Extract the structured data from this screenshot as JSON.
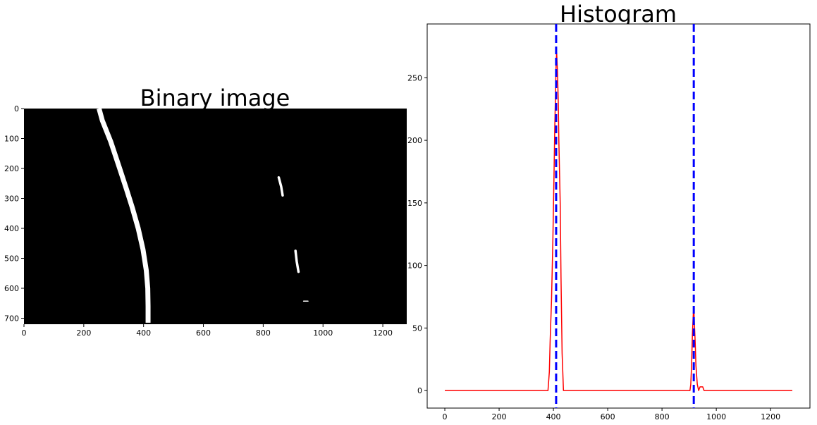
{
  "chart_data": [
    {
      "type": "image",
      "title": "Binary image",
      "background": "#000000",
      "foreground": "#ffffff",
      "xlim": [
        0,
        1280
      ],
      "ylim": [
        720,
        0
      ],
      "xticks": [
        0,
        200,
        400,
        600,
        800,
        1000,
        1200
      ],
      "yticks": [
        0,
        100,
        200,
        300,
        400,
        500,
        600,
        700
      ],
      "left_lane": {
        "x": [
          251,
          262,
          290,
          320,
          343,
          362,
          382,
          398,
          409,
          414,
          415,
          415
        ],
        "y": [
          0,
          40,
          110,
          200,
          270,
          330,
          400,
          470,
          540,
          600,
          660,
          715
        ]
      },
      "right_fragments": [
        {
          "x": [
            852,
            860,
            865
          ],
          "y": [
            230,
            260,
            290
          ]
        },
        {
          "x": [
            908,
            912,
            918
          ],
          "y": [
            475,
            510,
            545
          ]
        },
        {
          "x": [
            935,
            950
          ],
          "y": [
            643,
            643
          ]
        }
      ],
      "grid": false
    },
    {
      "type": "line",
      "title": "Histogram",
      "xlim": [
        -65,
        1345
      ],
      "ylim": [
        -14,
        293
      ],
      "xticks": [
        0,
        200,
        400,
        600,
        800,
        1000,
        1200
      ],
      "yticks": [
        0,
        50,
        100,
        150,
        200,
        250
      ],
      "grid": false,
      "series": [
        {
          "color": "#ff0000",
          "x": [
            0,
            380,
            385,
            388,
            393,
            398,
            402,
            405,
            408,
            410,
            412,
            415,
            418,
            420,
            425,
            428,
            432,
            437,
            900,
            903,
            906,
            909,
            912,
            915,
            917,
            919,
            922,
            925,
            930,
            935,
            940,
            945,
            950,
            955,
            960,
            1280
          ],
          "y": [
            0,
            0,
            15,
            40,
            72,
            120,
            170,
            210,
            240,
            262,
            270,
            255,
            230,
            200,
            150,
            90,
            30,
            0,
            0,
            0,
            5,
            20,
            45,
            60,
            67,
            55,
            40,
            20,
            5,
            0,
            3,
            3,
            3,
            0,
            0,
            0
          ]
        }
      ],
      "vlines": [
        {
          "x": 410,
          "color": "#0000ff",
          "style": "dashed"
        },
        {
          "x": 917,
          "color": "#0000ff",
          "style": "dashed"
        }
      ]
    }
  ]
}
